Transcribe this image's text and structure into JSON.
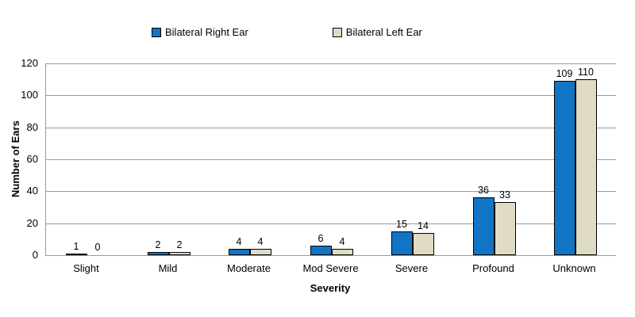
{
  "chart_data": {
    "type": "bar",
    "title": "",
    "categories": [
      "Slight",
      "Mild",
      "Moderate",
      "Mod Severe",
      "Severe",
      "Profound",
      "Unknown"
    ],
    "series": [
      {
        "name": "Bilateral Right Ear",
        "color": "#1274C5",
        "values": [
          1,
          2,
          4,
          6,
          15,
          36,
          109
        ]
      },
      {
        "name": "Bilateral Left Ear",
        "color": "#DFDBC5",
        "values": [
          0,
          2,
          4,
          4,
          14,
          33,
          110
        ]
      }
    ],
    "xlabel": "Severity",
    "ylabel": "Number of Ears",
    "ylim": [
      0,
      120
    ],
    "yticks": [
      0,
      20,
      40,
      60,
      80,
      100,
      120
    ],
    "grid": true,
    "legend_position": "top",
    "gridline_color": "#9a9a9a",
    "bar_border_color": "#000000",
    "text_color": "#000000",
    "background_color": "#ffffff"
  }
}
